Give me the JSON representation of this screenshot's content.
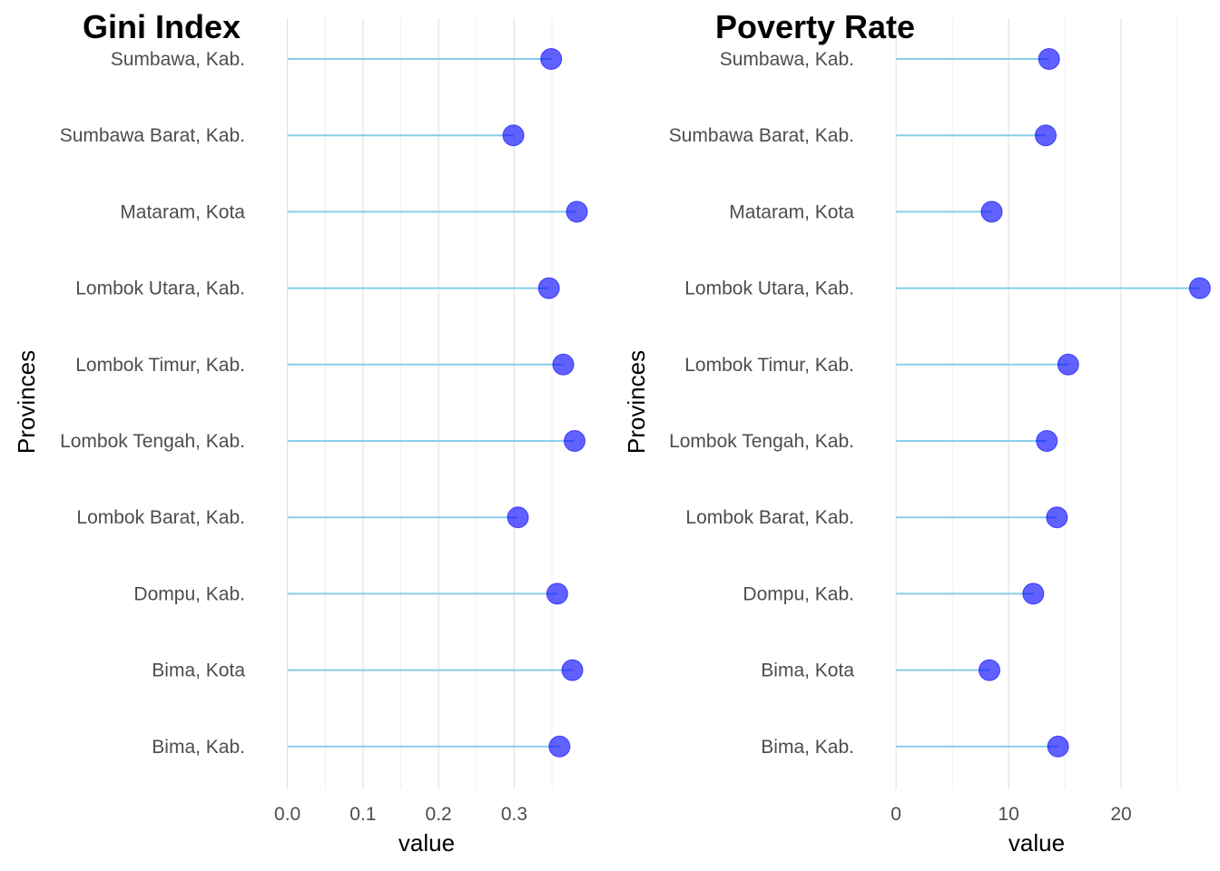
{
  "chart_data": [
    {
      "type": "lollipop",
      "title": "Gini Index",
      "xlabel": "value",
      "ylabel": "Provinces",
      "x_ticks": [
        0.0,
        0.1,
        0.2,
        0.3
      ],
      "x_tick_labels": [
        "0.0",
        "0.1",
        "0.2",
        "0.3"
      ],
      "xlim": [
        -0.02,
        0.41
      ],
      "grid": true,
      "categories": [
        "Sumbawa, Kab.",
        "Sumbawa Barat, Kab.",
        "Mataram, Kota",
        "Lombok Utara, Kab.",
        "Lombok Timur, Kab.",
        "Lombok Tengah, Kab.",
        "Lombok Barat, Kab.",
        "Dompu, Kab.",
        "Bima, Kota",
        "Bima, Kab."
      ],
      "values": [
        0.349,
        0.299,
        0.383,
        0.346,
        0.365,
        0.38,
        0.305,
        0.357,
        0.377,
        0.36
      ],
      "stem_color": "#87ceeb",
      "point_color": "#0000ff"
    },
    {
      "type": "lollipop",
      "title": "Poverty Rate",
      "xlabel": "value",
      "ylabel": "Provinces",
      "x_ticks": [
        0,
        10,
        20
      ],
      "x_tick_labels": [
        "0",
        "10",
        "20"
      ],
      "xlim": [
        -1.3,
        27.5
      ],
      "grid": true,
      "categories": [
        "Sumbawa, Kab.",
        "Sumbawa Barat, Kab.",
        "Mataram, Kota",
        "Lombok Utara, Kab.",
        "Lombok Timur, Kab.",
        "Lombok Tengah, Kab.",
        "Lombok Barat, Kab.",
        "Dompu, Kab.",
        "Bima, Kota",
        "Bima, Kab."
      ],
      "values": [
        13.6,
        13.3,
        8.5,
        27.0,
        15.3,
        13.4,
        14.3,
        12.2,
        8.3,
        14.4
      ],
      "stem_color": "#87ceeb",
      "point_color": "#0000ff"
    }
  ]
}
